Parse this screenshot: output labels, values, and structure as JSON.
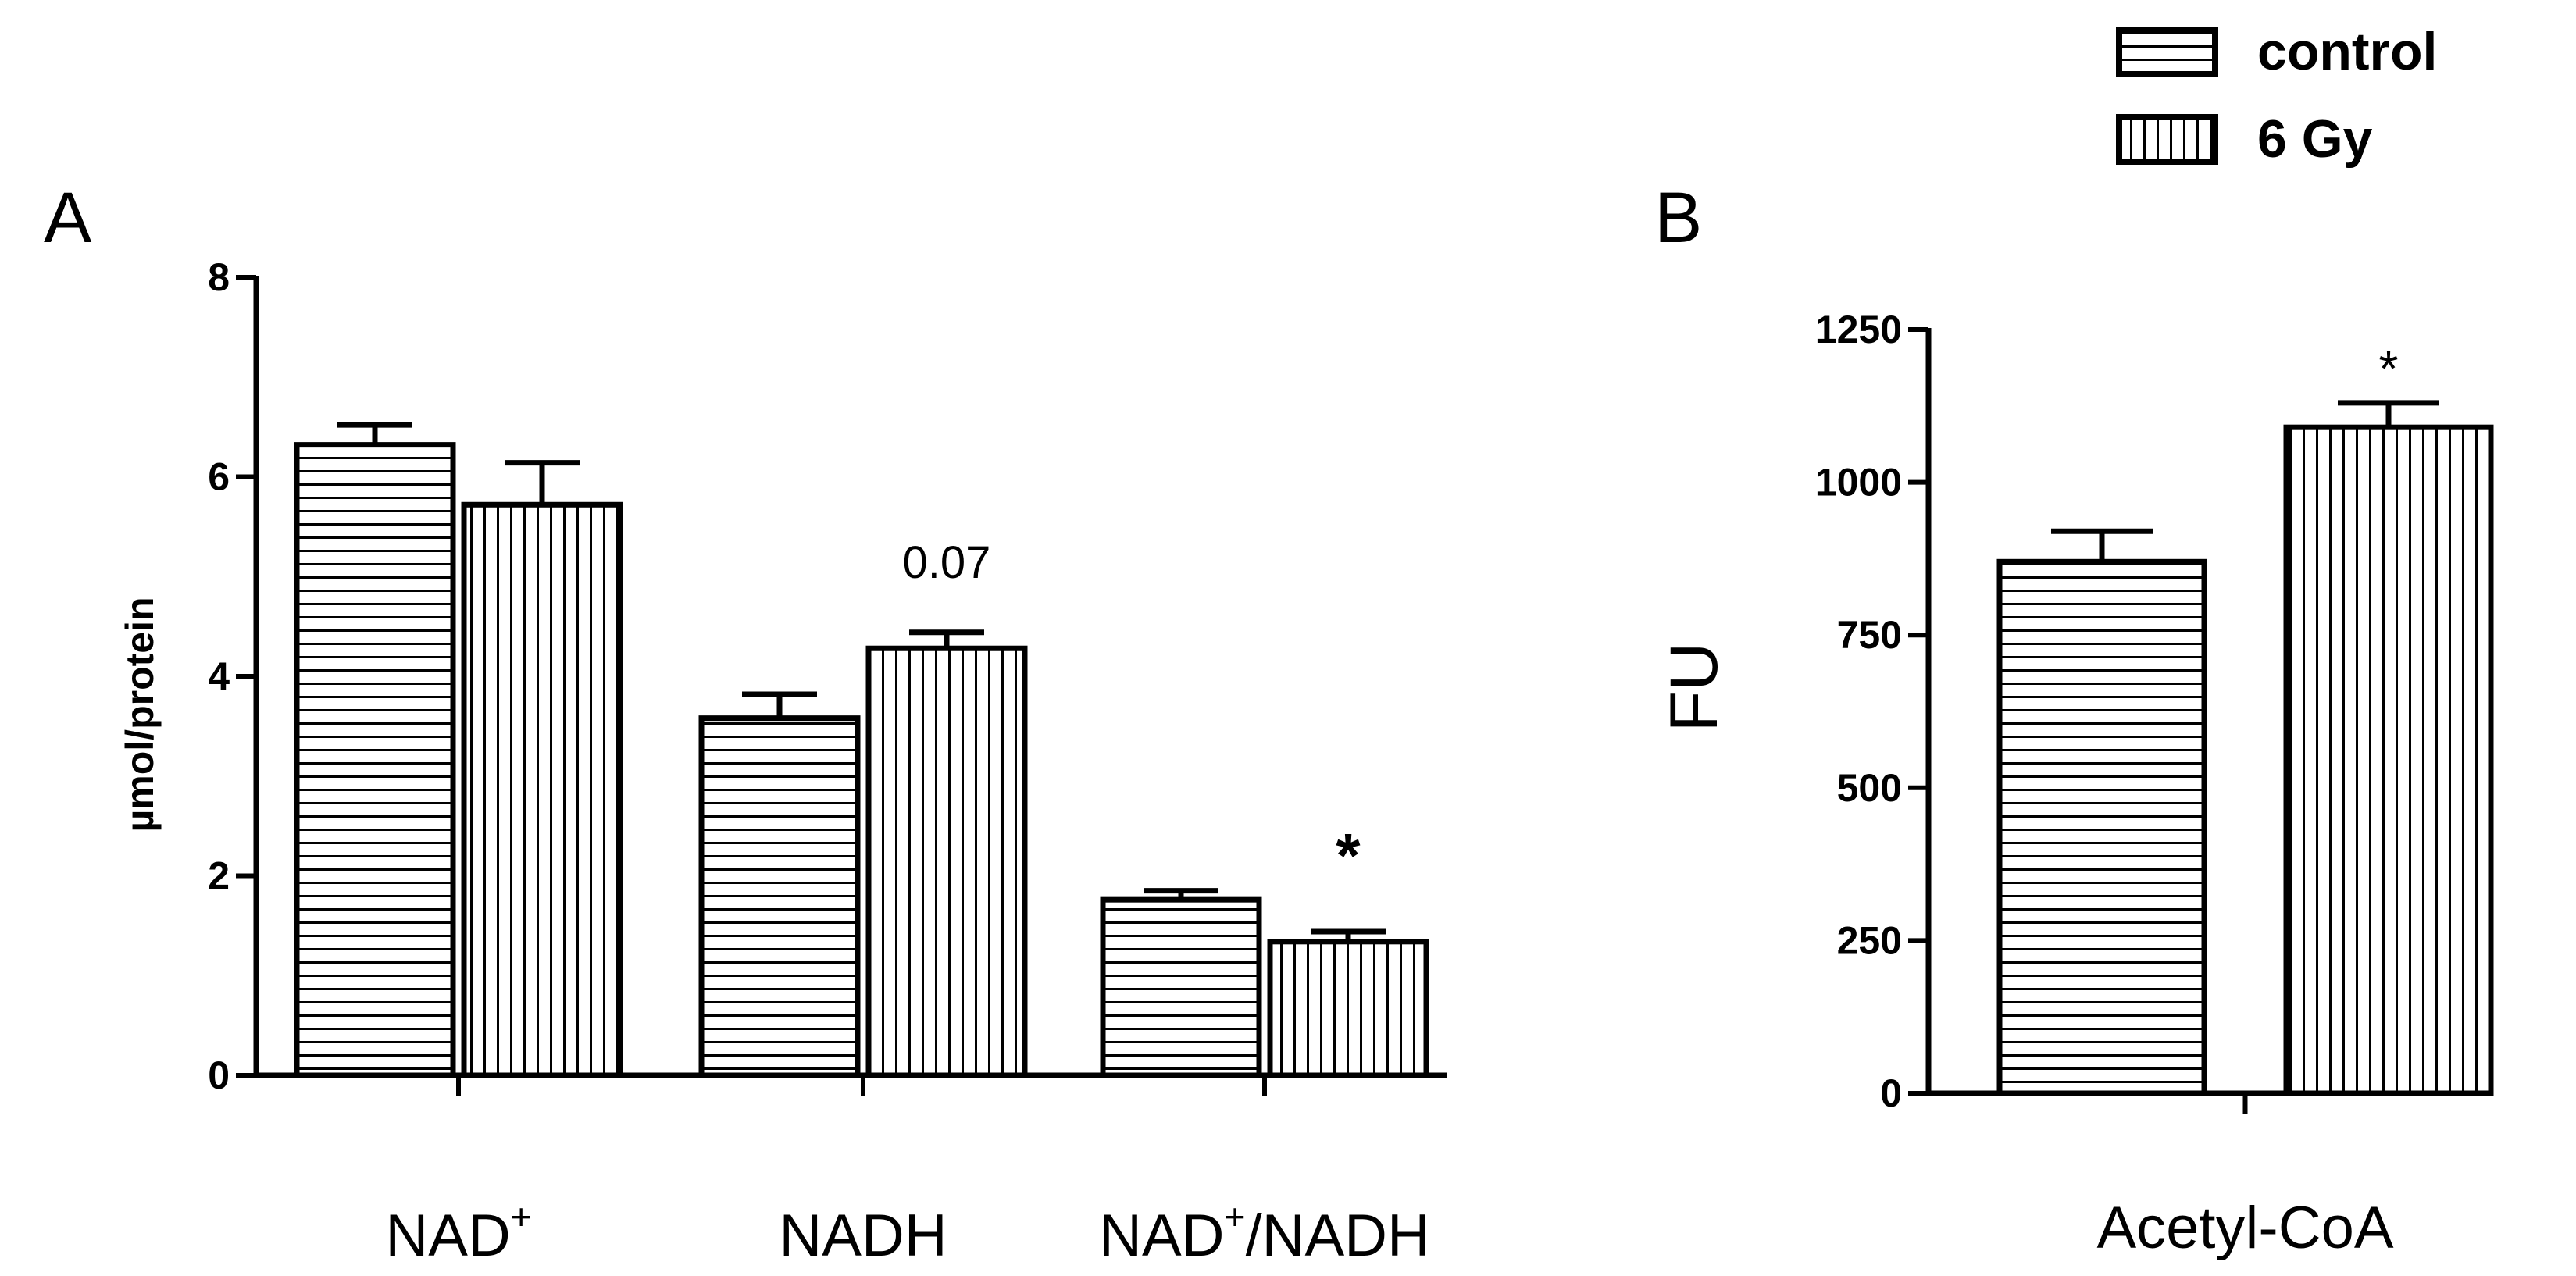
{
  "chart_data": [
    {
      "type": "bar",
      "panel": "A",
      "ylabel": "µmol/protein",
      "ylim": [
        0,
        8
      ],
      "yticks": [
        "0",
        "2",
        "4",
        "6",
        "8"
      ],
      "categories": [
        {
          "main": "NAD",
          "sup": "+",
          "rest": ""
        },
        {
          "main": "NADH",
          "sup": "",
          "rest": ""
        },
        {
          "main": "NAD",
          "sup": "+",
          "rest": "/NADH"
        }
      ],
      "series": [
        {
          "name": "control",
          "pattern": "horizontal",
          "values": [
            6.32,
            3.58,
            1.76
          ],
          "errors": [
            0.2,
            0.24,
            0.09
          ]
        },
        {
          "name": "6 Gy",
          "pattern": "vertical",
          "values": [
            5.72,
            4.28,
            1.34
          ],
          "errors": [
            0.42,
            0.16,
            0.1
          ]
        }
      ],
      "annotations": [
        {
          "category": 1,
          "series": 1,
          "text": "0.07"
        },
        {
          "category": 2,
          "series": 1,
          "text": "*"
        }
      ]
    },
    {
      "type": "bar",
      "panel": "B",
      "ylabel": "FU",
      "ylim": [
        0,
        1250
      ],
      "yticks": [
        "0",
        "250",
        "500",
        "750",
        "1000",
        "1250"
      ],
      "categories": [
        "Acetyl-CoA"
      ],
      "series": [
        {
          "name": "control",
          "pattern": "horizontal",
          "values": [
            870
          ],
          "errors": [
            50
          ]
        },
        {
          "name": "6 Gy",
          "pattern": "vertical",
          "values": [
            1090
          ],
          "errors": [
            40
          ]
        }
      ],
      "annotations": [
        {
          "category": 0,
          "series": 1,
          "text": "*"
        }
      ]
    }
  ],
  "legend": {
    "placement": "top-right",
    "items": [
      {
        "label": "control",
        "pattern": "horizontal"
      },
      {
        "label": "6 Gy",
        "pattern": "vertical"
      }
    ]
  }
}
